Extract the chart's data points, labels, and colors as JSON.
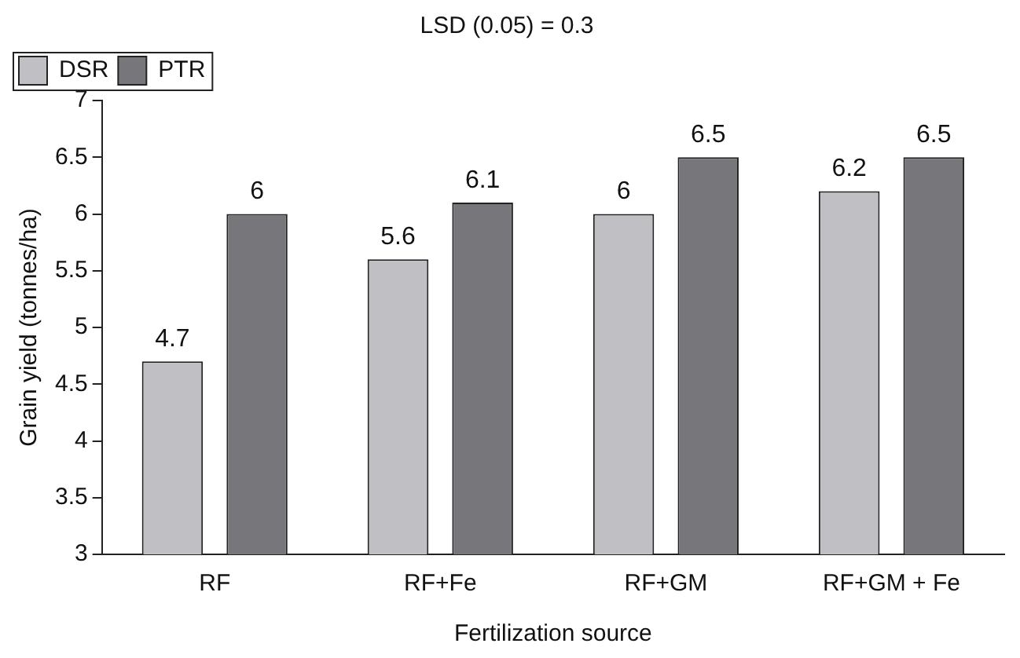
{
  "chart_data": {
    "type": "bar",
    "title": "LSD (0.05) = 0.3",
    "xlabel": "Fertilization source",
    "ylabel": "Grain yield (tonnes/ha)",
    "categories": [
      "RF",
      "RF+Fe",
      "RF+GM",
      "RF+GM + Fe"
    ],
    "series": [
      {
        "name": "DSR",
        "color": "#c0c0c4",
        "values": [
          4.7,
          5.6,
          6,
          6.2
        ]
      },
      {
        "name": "PTR",
        "color": "#77777b",
        "values": [
          6,
          6.1,
          6.5,
          6.5
        ]
      }
    ],
    "ylim": [
      3,
      7
    ],
    "yticks": [
      3,
      3.5,
      4,
      4.5,
      5,
      5.5,
      6,
      6.5,
      7
    ],
    "grid": false,
    "legend": "top left",
    "data_labels": true
  }
}
